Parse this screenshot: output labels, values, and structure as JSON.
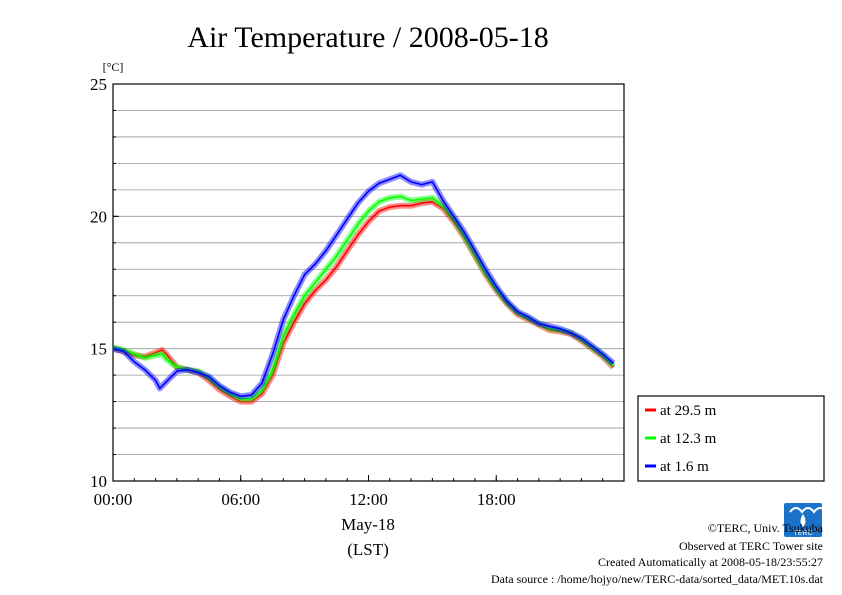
{
  "chart_data": {
    "type": "line",
    "title": "Air Temperature / 2008-05-18",
    "ylabel": "[°C]",
    "xlabel_date": "May-18",
    "xlabel_unit": "(LST)",
    "xlim": [
      0,
      24
    ],
    "ylim": [
      10,
      25
    ],
    "x_ticks": [
      {
        "value": 0,
        "label": "00:00"
      },
      {
        "value": 6,
        "label": "06:00"
      },
      {
        "value": 12,
        "label": "12:00"
      },
      {
        "value": 18,
        "label": "18:00"
      }
    ],
    "y_ticks": [
      {
        "value": 10,
        "label": "10"
      },
      {
        "value": 15,
        "label": "15"
      },
      {
        "value": 20,
        "label": "20"
      },
      {
        "value": 25,
        "label": "25"
      }
    ],
    "grid": true,
    "grid_step_y": 1,
    "legend_position": "right",
    "series": [
      {
        "name": "at 29.5 m",
        "color": "#ff0000",
        "x": [
          0,
          0.5,
          1,
          1.5,
          2,
          2.3,
          2.5,
          3,
          3.5,
          4,
          4.5,
          5,
          5.5,
          6,
          6.5,
          7,
          7.5,
          8,
          8.5,
          9,
          9.5,
          10,
          10.5,
          11,
          11.5,
          12,
          12.5,
          13,
          13.5,
          14,
          14.5,
          15,
          15.5,
          16,
          16.5,
          17,
          17.5,
          18,
          18.5,
          19,
          19.5,
          20,
          20.5,
          21,
          21.5,
          22,
          22.5,
          23,
          23.5
        ],
        "y": [
          15.0,
          14.9,
          14.75,
          14.7,
          14.85,
          14.95,
          14.8,
          14.3,
          14.2,
          14.1,
          13.8,
          13.45,
          13.2,
          13.0,
          13.0,
          13.3,
          14.0,
          15.2,
          16.0,
          16.7,
          17.2,
          17.6,
          18.1,
          18.7,
          19.3,
          19.8,
          20.2,
          20.35,
          20.4,
          20.4,
          20.5,
          20.55,
          20.3,
          19.8,
          19.2,
          18.5,
          17.8,
          17.2,
          16.7,
          16.3,
          16.1,
          15.9,
          15.7,
          15.65,
          15.55,
          15.3,
          15.0,
          14.7,
          14.3
        ]
      },
      {
        "name": "at 12.3 m",
        "color": "#00ff00",
        "x": [
          0,
          0.5,
          1,
          1.5,
          2,
          2.3,
          2.5,
          3,
          3.5,
          4,
          4.5,
          5,
          5.5,
          6,
          6.5,
          7,
          7.5,
          8,
          8.5,
          9,
          9.5,
          10,
          10.5,
          11,
          11.5,
          12,
          12.5,
          13,
          13.5,
          14,
          14.5,
          15,
          15.5,
          16,
          16.5,
          17,
          17.5,
          18,
          18.5,
          19,
          19.5,
          20,
          20.5,
          21,
          21.5,
          22,
          22.5,
          23,
          23.5
        ],
        "y": [
          15.05,
          14.95,
          14.8,
          14.65,
          14.75,
          14.8,
          14.6,
          14.3,
          14.2,
          14.15,
          13.9,
          13.55,
          13.3,
          13.1,
          13.1,
          13.45,
          14.2,
          15.5,
          16.3,
          17.0,
          17.5,
          18.0,
          18.5,
          19.1,
          19.7,
          20.2,
          20.55,
          20.7,
          20.75,
          20.6,
          20.65,
          20.7,
          20.4,
          19.9,
          19.25,
          18.55,
          17.85,
          17.25,
          16.75,
          16.35,
          16.15,
          15.95,
          15.75,
          15.7,
          15.6,
          15.35,
          15.05,
          14.75,
          14.35
        ]
      },
      {
        "name": "at 1.6 m",
        "color": "#0000ff",
        "x": [
          0,
          0.5,
          1,
          1.5,
          2,
          2.2,
          2.5,
          3,
          3.5,
          4,
          4.5,
          5,
          5.5,
          6,
          6.5,
          7,
          7.5,
          8,
          8.5,
          9,
          9.5,
          10,
          10.5,
          11,
          11.5,
          12,
          12.5,
          13,
          13.5,
          14,
          14.5,
          15,
          15.5,
          16,
          16.5,
          17,
          17.5,
          18,
          18.5,
          19,
          19.5,
          20,
          20.5,
          21,
          21.5,
          22,
          22.5,
          23,
          23.5
        ],
        "y": [
          15.0,
          14.9,
          14.5,
          14.2,
          13.8,
          13.5,
          13.75,
          14.15,
          14.2,
          14.1,
          13.95,
          13.6,
          13.35,
          13.2,
          13.25,
          13.7,
          14.8,
          16.1,
          17.0,
          17.8,
          18.2,
          18.7,
          19.3,
          19.9,
          20.5,
          20.95,
          21.25,
          21.4,
          21.55,
          21.3,
          21.2,
          21.3,
          20.6,
          20.0,
          19.4,
          18.7,
          18.0,
          17.35,
          16.8,
          16.4,
          16.2,
          15.95,
          15.85,
          15.75,
          15.6,
          15.4,
          15.1,
          14.8,
          14.45
        ]
      }
    ]
  },
  "footer": {
    "copyright": "©TERC, Univ. Tsukuba",
    "site": "Observed at TERC Tower site",
    "created": "Created Automatically at 2008-05-18/23:55:27",
    "source": "Data source : /home/hojyo/new/TERC-data/sorted_data/MET.10s.dat",
    "logo_text": "TERC"
  }
}
